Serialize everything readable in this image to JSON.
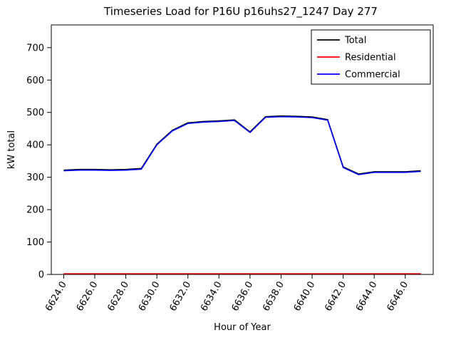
{
  "chart_data": {
    "type": "line",
    "title": "Timeseries Load for P16U p16uhs27_1247  Day 277",
    "xlabel": "Hour of Year",
    "ylabel": "kW total",
    "x": [
      6624,
      6625,
      6626,
      6627,
      6628,
      6629,
      6630,
      6631,
      6632,
      6633,
      6634,
      6635,
      6636,
      6637,
      6638,
      6639,
      6640,
      6641,
      6642,
      6643,
      6644,
      6645,
      6646,
      6647
    ],
    "series": [
      {
        "name": "Total",
        "color": "#000000",
        "values": [
          322,
          324,
          324,
          323,
          324,
          327,
          402,
          445,
          468,
          472,
          474,
          477,
          440,
          487,
          489,
          488,
          486,
          478,
          332,
          310,
          317,
          317,
          317,
          320
        ]
      },
      {
        "name": "Residential",
        "color": "#ff0000",
        "values": [
          2,
          2,
          2,
          2,
          2,
          2,
          2,
          2,
          2,
          2,
          2,
          2,
          2,
          2,
          2,
          2,
          2,
          2,
          2,
          2,
          2,
          2,
          2,
          2
        ]
      },
      {
        "name": "Commercial",
        "color": "#0000ff",
        "values": [
          320,
          322,
          322,
          321,
          322,
          325,
          400,
          443,
          466,
          470,
          472,
          475,
          438,
          485,
          487,
          486,
          484,
          476,
          330,
          308,
          315,
          315,
          315,
          318
        ]
      }
    ],
    "xlim": [
      6623.2,
      6647.8
    ],
    "ylim": [
      0,
      770
    ],
    "xticks": [
      6624,
      6626,
      6630,
      6628,
      6632,
      6634,
      6636,
      6638,
      6640,
      6642,
      6644,
      6646
    ],
    "yticks": [
      0,
      100,
      200,
      300,
      400,
      500,
      600,
      700
    ],
    "xtick_decimals": 1,
    "legend": {
      "position": "upper right",
      "entries": [
        "Total",
        "Residential",
        "Commercial"
      ]
    },
    "grid": false,
    "axis_color": "#000000",
    "background": "#ffffff"
  }
}
